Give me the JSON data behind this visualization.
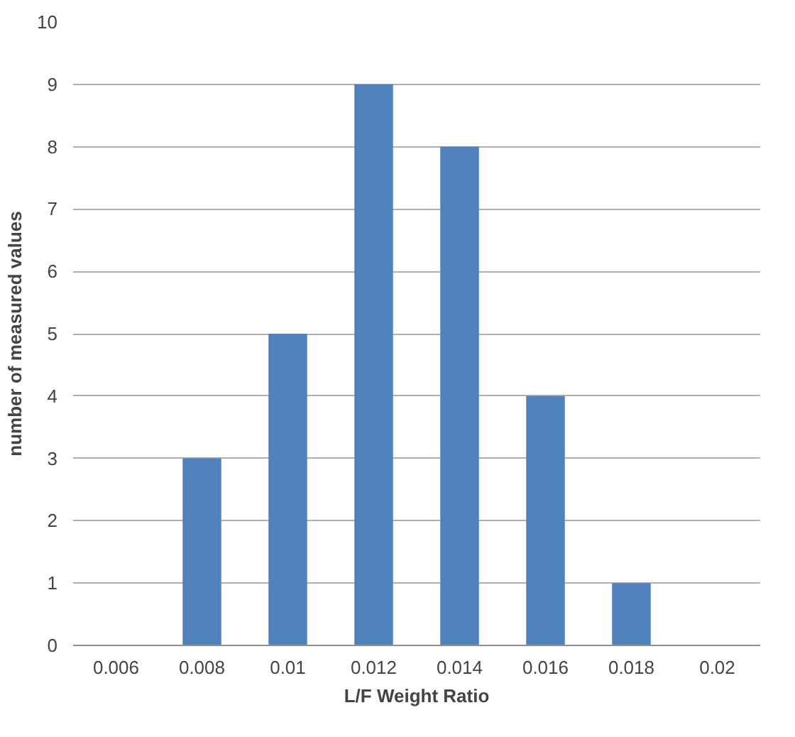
{
  "chart_data": {
    "type": "bar",
    "xlabel": "L/F Weight Ratio",
    "ylabel": "number of measured values",
    "categories": [
      "0.006",
      "0.008",
      "0.01",
      "0.012",
      "0.014",
      "0.016",
      "0.018",
      "0.02"
    ],
    "values": [
      0,
      3,
      5,
      9,
      8,
      4,
      1,
      0
    ],
    "color": "#4f81bd",
    "ylim": [
      0,
      10
    ],
    "yticks": [
      0,
      1,
      2,
      3,
      4,
      5,
      6,
      7,
      8,
      9,
      10
    ],
    "grid": "y"
  }
}
